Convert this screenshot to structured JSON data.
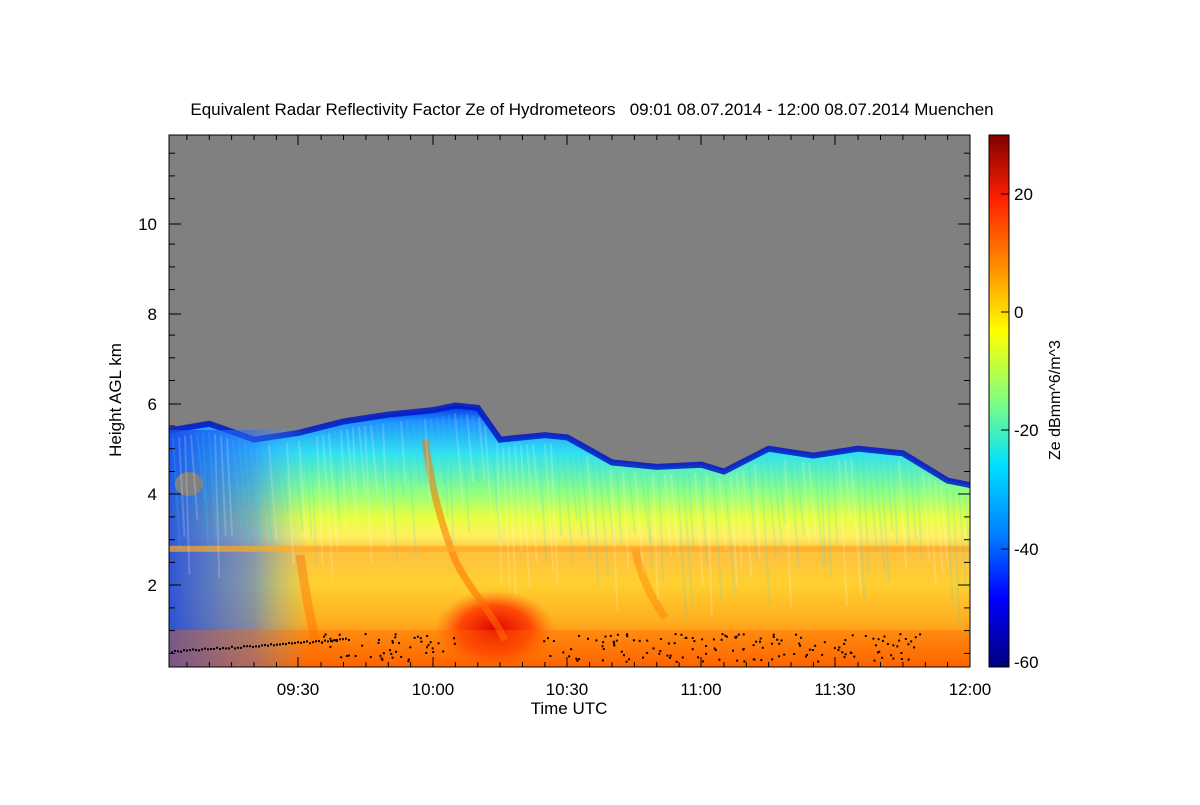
{
  "chart_data": {
    "type": "heatmap",
    "title": "Equivalent Radar Reflectivity Factor Ze of Hydrometeors   09:01 08.07.2014 - 12:00 08.07.2014 Muenchen",
    "xlabel": "Time UTC",
    "ylabel": "Height AGL km",
    "colorbar_label": "Ze dBmm^6/m^3",
    "x_ticks": [
      "09:30",
      "10:00",
      "10:30",
      "11:00",
      "11:30",
      "12:00"
    ],
    "y_ticks": [
      "2",
      "4",
      "6",
      "8",
      "10"
    ],
    "colorbar_ticks": [
      "20",
      "0",
      "-20",
      "-40",
      "-60"
    ],
    "x_range": [
      "09:01",
      "12:00"
    ],
    "y_range_km": [
      0.2,
      11.9
    ],
    "color_range_dBZ": [
      -60,
      30
    ],
    "no_data_color": "#808080",
    "melting_layer_km": 2.8,
    "echo_top_km": [
      {
        "t": "09:01",
        "h": 5.4
      },
      {
        "t": "09:10",
        "h": 5.55
      },
      {
        "t": "09:20",
        "h": 5.2
      },
      {
        "t": "09:30",
        "h": 5.35
      },
      {
        "t": "09:40",
        "h": 5.6
      },
      {
        "t": "09:50",
        "h": 5.75
      },
      {
        "t": "10:00",
        "h": 5.85
      },
      {
        "t": "10:05",
        "h": 5.95
      },
      {
        "t": "10:10",
        "h": 5.9
      },
      {
        "t": "10:15",
        "h": 5.2
      },
      {
        "t": "10:25",
        "h": 5.3
      },
      {
        "t": "10:30",
        "h": 5.25
      },
      {
        "t": "10:40",
        "h": 4.7
      },
      {
        "t": "10:50",
        "h": 4.6
      },
      {
        "t": "11:00",
        "h": 4.65
      },
      {
        "t": "11:05",
        "h": 4.5
      },
      {
        "t": "11:15",
        "h": 5.0
      },
      {
        "t": "11:25",
        "h": 4.85
      },
      {
        "t": "11:35",
        "h": 5.0
      },
      {
        "t": "11:45",
        "h": 4.9
      },
      {
        "t": "11:50",
        "h": 4.6
      },
      {
        "t": "11:55",
        "h": 4.3
      },
      {
        "t": "12:00",
        "h": 4.2
      }
    ]
  }
}
